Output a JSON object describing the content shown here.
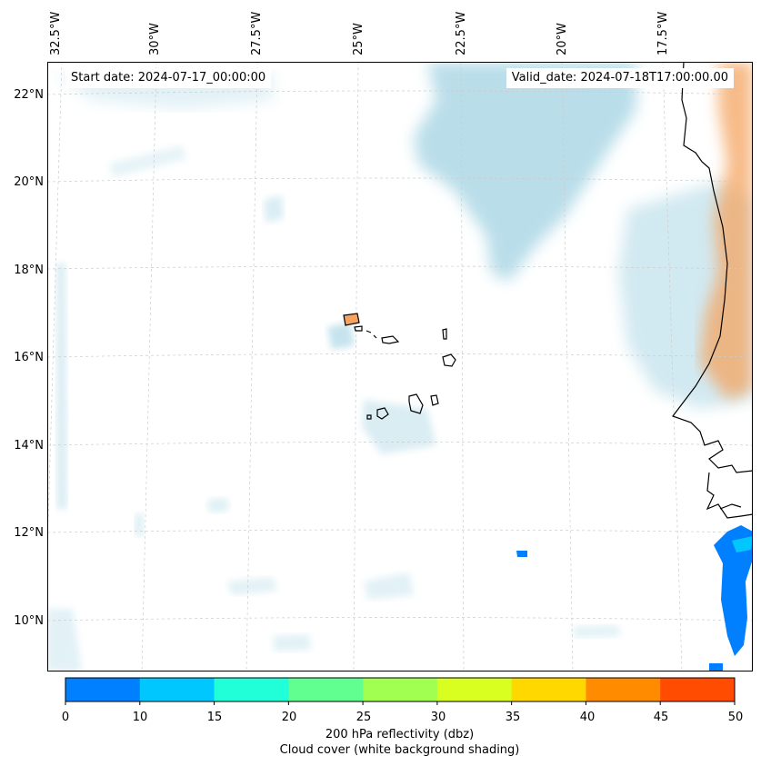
{
  "map": {
    "start_label": "Start date: 2024-07-17_00:00:00",
    "valid_label": "Valid_date: 2024-07-18T17:00:00.00",
    "lon_labels": [
      "32.5°W",
      "30°W",
      "27.5°W",
      "25°W",
      "22.5°W",
      "20°W",
      "17.5°W"
    ],
    "lat_labels": [
      "22°N",
      "20°N",
      "18°N",
      "16°N",
      "14°N",
      "12°N",
      "10°N"
    ]
  },
  "colorbar": {
    "ticks": [
      "0",
      "10",
      "15",
      "20",
      "25",
      "30",
      "35",
      "40",
      "45",
      "50"
    ],
    "colors": [
      "#0080ff",
      "#00c8ff",
      "#20ffd8",
      "#60ff90",
      "#a0ff50",
      "#d8ff20",
      "#ffd800",
      "#ff8c00",
      "#ff4c00"
    ],
    "title_line1": "200 hPa reflectivity (dbz)",
    "title_line2": "Cloud cover (white background shading)"
  },
  "colors": {
    "cloud": "#add8e6",
    "land_warm": "#f4a460",
    "reflect_low": "#0080ff",
    "reflect_mid": "#00c8ff",
    "coast": "#000000",
    "grid": "#cccccc"
  }
}
